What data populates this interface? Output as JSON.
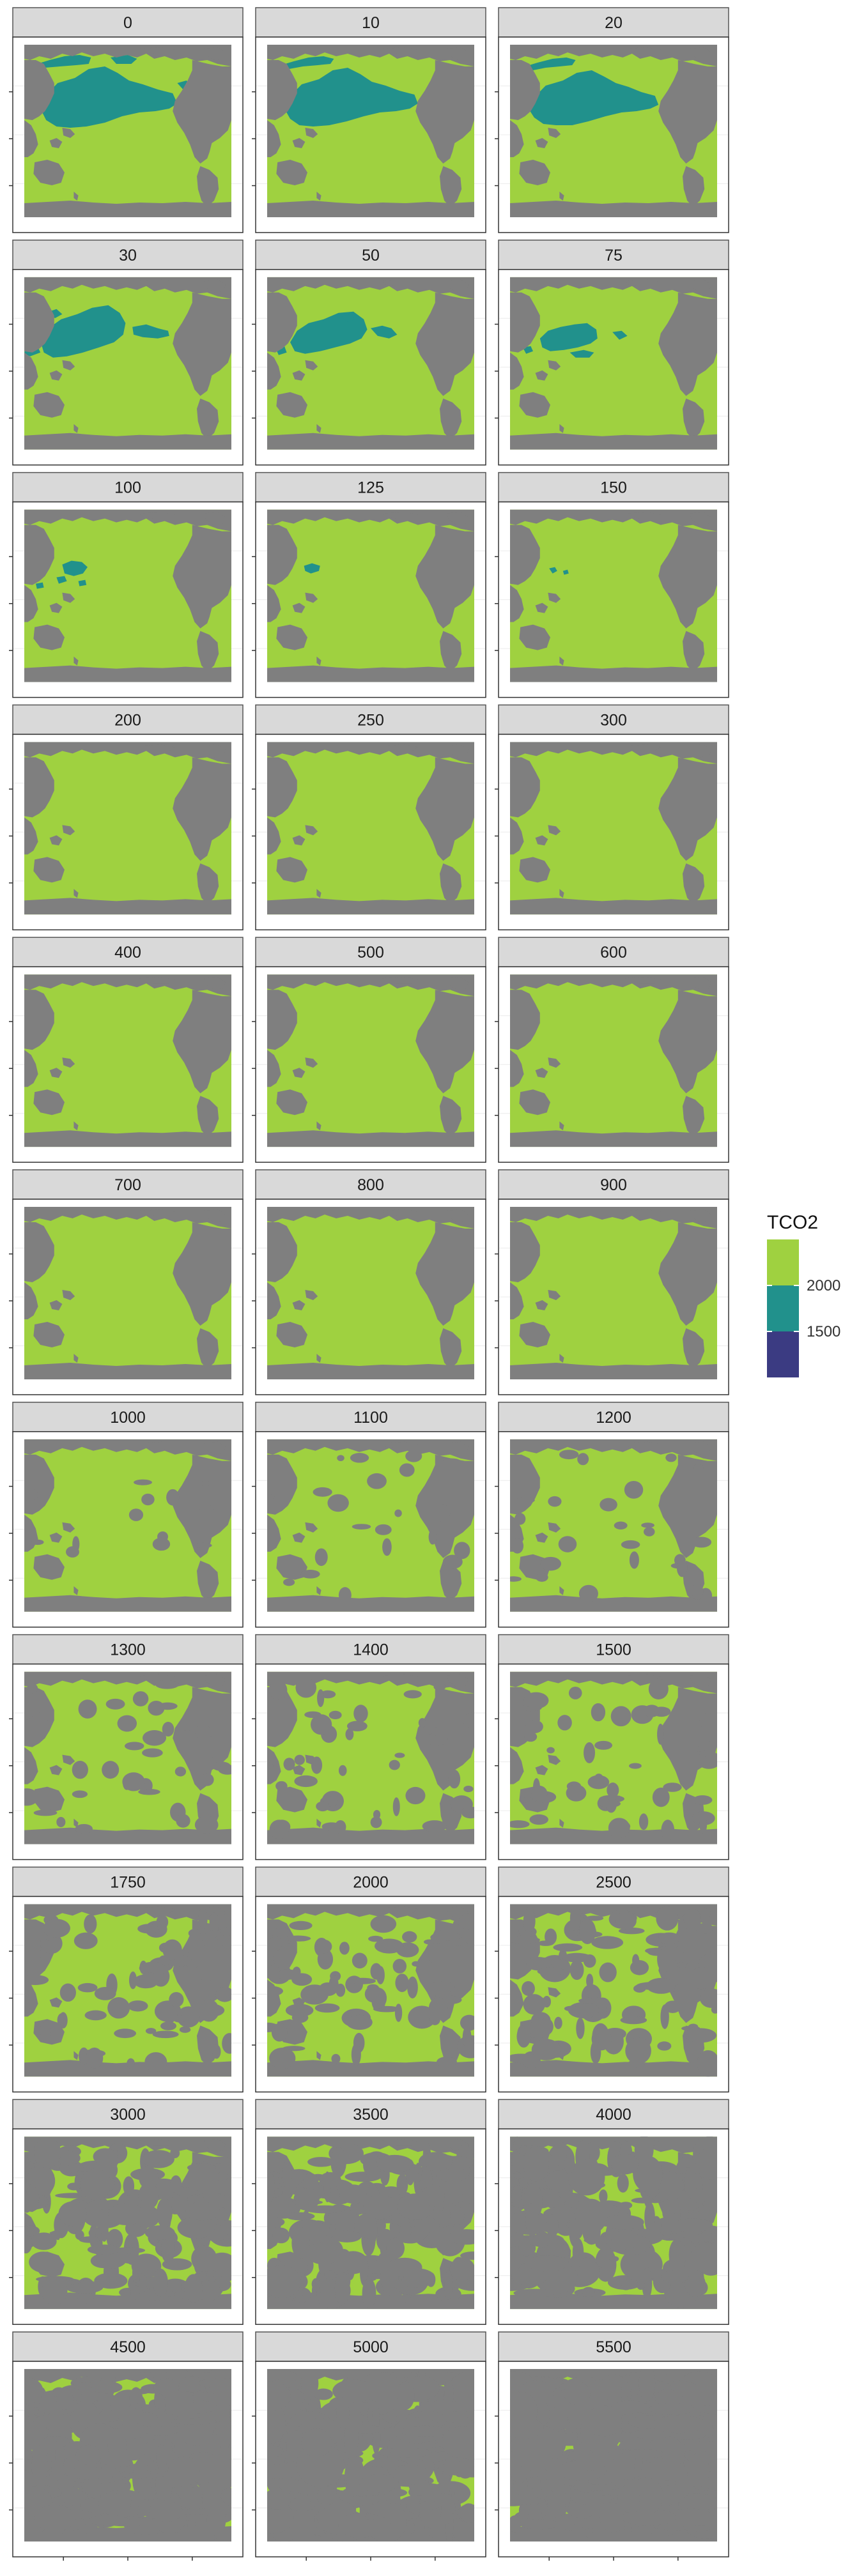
{
  "chart_data": {
    "type": "heatmap",
    "title": "",
    "facet_labels": [
      "0",
      "10",
      "20",
      "30",
      "50",
      "75",
      "100",
      "125",
      "150",
      "200",
      "250",
      "300",
      "400",
      "500",
      "600",
      "700",
      "800",
      "900",
      "1000",
      "1100",
      "1200",
      "1300",
      "1400",
      "1500",
      "1750",
      "2000",
      "2500",
      "3000",
      "3500",
      "4000",
      "4500",
      "5000",
      "5500"
    ],
    "facet_columns": 3,
    "facet_rows": 11,
    "map_colors": {
      "land": "#7f7f7f",
      "panel_background": "#ffffff",
      "strip_background": "#d9d9d9",
      "strip_border": "#555555",
      "panel_border": "#333333"
    },
    "legend": {
      "title": "TCO2",
      "position": "right",
      "tick_labels": [
        "2000",
        "1500"
      ],
      "bins": [
        {
          "color": "#9fd140"
        },
        {
          "color": "#21918c"
        },
        {
          "color": "#3b3b82"
        }
      ]
    }
  }
}
